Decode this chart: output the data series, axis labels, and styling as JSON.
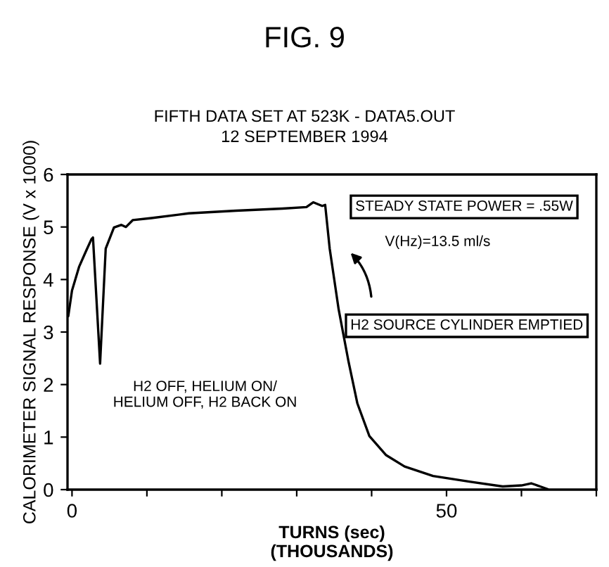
{
  "chart_data": {
    "type": "line",
    "title": "FIG. 9",
    "subtitle": "FIFTH DATA SET AT 523K - DATA5.OUT\n12 SEPTEMBER 1994",
    "xlabel": "TURNS (sec)\n(THOUSANDS)",
    "ylabel": "CALORIMETER SIGNAL RESPONSE (V x 1000)",
    "x": [
      -0.5,
      0,
      0.94,
      1.9,
      2.6,
      2.8,
      3.75,
      4.5,
      5.6,
      6.6,
      7.2,
      8.1,
      10.6,
      15.6,
      21.9,
      28.1,
      31.3,
      32.2,
      33.4,
      33.8,
      34.4,
      35.6,
      36.9,
      38.1,
      39.7,
      41.9,
      44.4,
      48.2,
      53.2,
      57.5,
      60.0,
      61.3,
      62.5,
      63.5
    ],
    "series": [
      {
        "color": "#000000",
        "values": [
          3.3,
          3.79,
          4.24,
          4.55,
          4.77,
          4.8,
          2.4,
          4.59,
          4.99,
          5.04,
          5.0,
          5.13,
          5.17,
          5.26,
          5.31,
          5.35,
          5.38,
          5.47,
          5.4,
          5.42,
          4.59,
          3.43,
          2.45,
          1.64,
          1.02,
          0.66,
          0.44,
          0.26,
          0.15,
          0.06,
          0.08,
          0.12,
          0.06,
          0.01
        ]
      }
    ],
    "xlim": [
      -0.6,
      70
    ],
    "xticks": [
      0,
      {
        "value": 10,
        "label": null
      },
      {
        "value": 20,
        "label": null
      },
      {
        "value": 30,
        "label": null
      },
      {
        "value": 40,
        "label": null
      },
      50,
      {
        "value": 60,
        "label": null
      },
      {
        "value": 70,
        "label": null
      }
    ],
    "ylim": [
      0,
      6
    ],
    "yticks": [
      0,
      1,
      2,
      3,
      4,
      5,
      6
    ],
    "grid": false,
    "annotations": [
      "H2 OFF, HELIUM ON/\nHELIUM OFF, H2 BACK ON",
      "STEADY STATE POWER = .55W",
      "V(Hz)=13.5 ml/s",
      "H2 SOURCE CYLINDER EMPTIED"
    ]
  }
}
